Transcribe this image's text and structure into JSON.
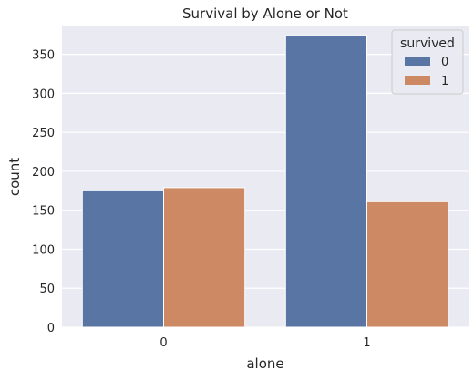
{
  "chart_data": {
    "type": "bar",
    "title": "Survival by Alone or Not",
    "xlabel": "alone",
    "ylabel": "count",
    "categories": [
      "0",
      "1"
    ],
    "series": [
      {
        "name": "0",
        "values": [
          175,
          374
        ],
        "color": "#5875a4"
      },
      {
        "name": "1",
        "values": [
          179,
          161
        ],
        "color": "#cc8963"
      }
    ],
    "ylim": [
      0,
      387
    ],
    "yticks": [
      0,
      50,
      100,
      150,
      200,
      250,
      300,
      350
    ],
    "legend": {
      "title": "survived",
      "placement": "top-right"
    },
    "grid": true,
    "background": "#eaeaf2"
  }
}
